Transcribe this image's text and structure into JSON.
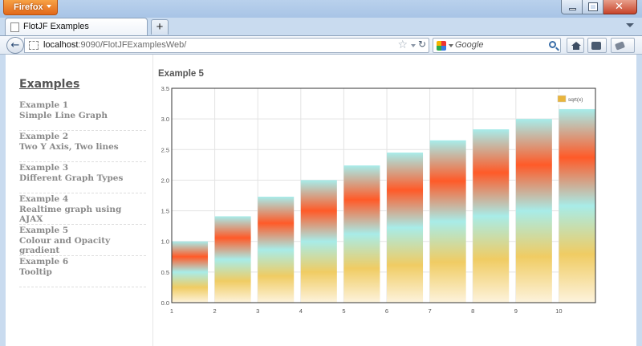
{
  "window": {
    "app_button": "Firefox",
    "controls": {
      "minimize": "—",
      "maximize": "□",
      "close": "✕"
    }
  },
  "tabs": [
    {
      "title": "FlotJF Examples",
      "active": true
    }
  ],
  "navbar": {
    "url_host": "localhost",
    "url_rest": ":9090/FlotJFExamplesWeb/",
    "search_placeholder": "Google"
  },
  "sidebar": {
    "heading": "Examples",
    "items": [
      {
        "number": "Example 1",
        "label": "Simple Line Graph"
      },
      {
        "number": "Example 2",
        "label": "Two Y Axis, Two lines"
      },
      {
        "number": "Example 3",
        "label": "Different Graph Types"
      },
      {
        "number": "Example 4",
        "label": "Realtime graph using AJAX"
      },
      {
        "number": "Example 5",
        "label": "Colour and Opacity gradient"
      },
      {
        "number": "Example 6",
        "label": "Tooltip"
      }
    ]
  },
  "main": {
    "title": "Example 5"
  },
  "chart_data": {
    "type": "bar",
    "x": [
      1,
      2,
      3,
      4,
      5,
      6,
      7,
      8,
      9,
      10
    ],
    "series": [
      {
        "name": "sqrt(x)",
        "values": [
          1.0,
          1.41,
          1.73,
          2.0,
          2.24,
          2.45,
          2.65,
          2.83,
          3.0,
          3.16
        ]
      }
    ],
    "xlim": [
      1,
      10.85
    ],
    "ylim": [
      0,
      3.5
    ],
    "x_ticks": [
      "1",
      "2",
      "3",
      "4",
      "5",
      "6",
      "7",
      "8",
      "9",
      "10"
    ],
    "y_ticks": [
      "0.0",
      "0.5",
      "1.0",
      "1.5",
      "2.0",
      "2.5",
      "3.0",
      "3.5"
    ],
    "grid": true,
    "legend_position": "top-right",
    "legend_color": "#e9b53c",
    "gradient_colors": [
      "#fdf3dd",
      "#f0cc63",
      "#a8ece8",
      "#ff5a28",
      "#a7ecea"
    ]
  }
}
